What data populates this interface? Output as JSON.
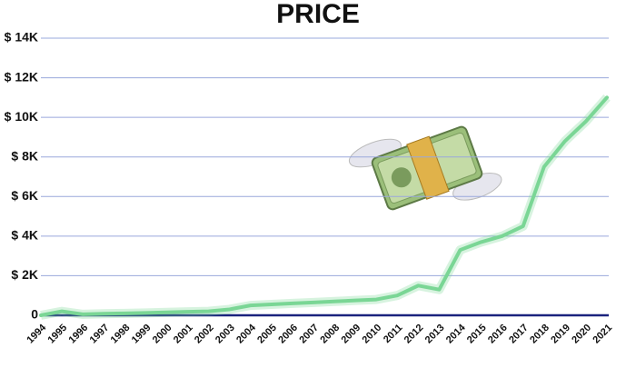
{
  "chart_data": {
    "type": "line",
    "title": "PRICE",
    "categories": [
      "1994",
      "1995",
      "1996",
      "1997",
      "1998",
      "1999",
      "2000",
      "2001",
      "2002",
      "2003",
      "2004",
      "2005",
      "2006",
      "2007",
      "2008",
      "2009",
      "2010",
      "2011",
      "2012",
      "2013",
      "2014",
      "2015",
      "2016",
      "2017",
      "2018",
      "2019",
      "2020",
      "2021"
    ],
    "series": [
      {
        "name": "Price",
        "color": "#7ad695",
        "values": [
          0,
          200,
          50,
          80,
          100,
          120,
          150,
          180,
          200,
          300,
          500,
          550,
          600,
          650,
          700,
          750,
          800,
          1000,
          1500,
          1300,
          3300,
          3700,
          4000,
          4500,
          7500,
          8800,
          9800,
          11000
        ]
      }
    ],
    "ylim": [
      0,
      14000
    ],
    "yticks": [
      {
        "value": 0,
        "label": "0"
      },
      {
        "value": 2000,
        "label": "$ 2K"
      },
      {
        "value": 4000,
        "label": "$ 4K"
      },
      {
        "value": 6000,
        "label": "$ 6K"
      },
      {
        "value": 8000,
        "label": "$ 8K"
      },
      {
        "value": 10000,
        "label": "$ 10K"
      },
      {
        "value": 12000,
        "label": "$ 12K"
      },
      {
        "value": 14000,
        "label": "$ 14K"
      }
    ],
    "grid": true
  }
}
